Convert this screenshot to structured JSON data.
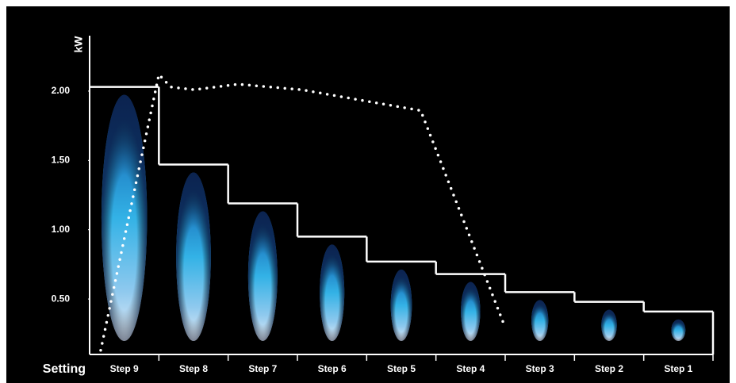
{
  "chart_data": {
    "type": "step",
    "y_label": "kW",
    "x_label": "Setting",
    "categories": [
      "Step 9",
      "Step 8",
      "Step 7",
      "Step 6",
      "Step 5",
      "Step 4",
      "Step 3",
      "Step 2",
      "Step 1"
    ],
    "values": [
      2.03,
      1.47,
      1.19,
      0.95,
      0.77,
      0.68,
      0.55,
      0.48,
      0.41
    ],
    "color": "#ffffff",
    "line": {
      "x": [
        0.16,
        1.0,
        1.17,
        1.51,
        2.14,
        3.06,
        3.97,
        4.78,
        5.98
      ],
      "values": [
        0.13,
        2.12,
        2.03,
        2.01,
        2.05,
        2.01,
        1.93,
        1.86,
        0.32
      ],
      "color": "#ffffff"
    },
    "xlim": [
      0,
      9
    ],
    "ylim": [
      0.1,
      2.4
    ],
    "yticks": [
      {
        "value": 0.5,
        "label": "0.50"
      },
      {
        "value": 1.0,
        "label": "1.00"
      },
      {
        "value": 1.5,
        "label": "1.50"
      },
      {
        "value": 2.0,
        "label": "2.00"
      }
    ]
  }
}
